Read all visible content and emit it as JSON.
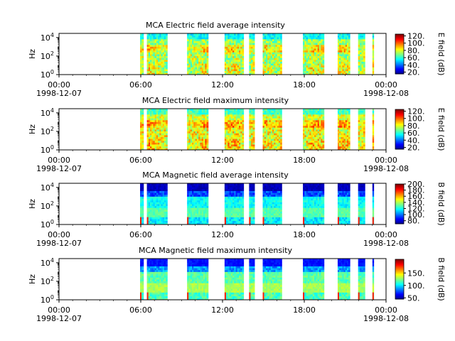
{
  "chart_data": [
    {
      "type": "heatmap",
      "title": "MCA  Electric field average intensity",
      "ylabel": "Hz",
      "yscale": "log",
      "yticks": [
        {
          "exp": "0"
        },
        {
          "exp": "2"
        },
        {
          "exp": "4"
        }
      ],
      "xticks": [
        {
          "time": "00:00",
          "date": "1998-12-07"
        },
        {
          "time": "06:00",
          "date": ""
        },
        {
          "time": "12:00",
          "date": ""
        },
        {
          "time": "18:00",
          "date": ""
        },
        {
          "time": "00:00",
          "date": "1998-12-08"
        }
      ],
      "colorbar": {
        "label": "E field (dB)",
        "range": [
          15,
          125
        ],
        "ticks": [
          "20.",
          "40.",
          "60.",
          "80.",
          "100.",
          "120."
        ],
        "tick_values": [
          20,
          40,
          60,
          80,
          100,
          120
        ]
      },
      "data_intervals_hours": [
        [
          5.95,
          6.2
        ],
        [
          6.45,
          7.95
        ],
        [
          9.4,
          10.95
        ],
        [
          12.15,
          13.55
        ],
        [
          13.95,
          14.35
        ],
        [
          14.95,
          16.35
        ],
        [
          17.9,
          19.45
        ],
        [
          20.45,
          21.35
        ],
        [
          21.95,
          22.45
        ],
        [
          23.0,
          23.1
        ]
      ],
      "profile": "e_avg"
    },
    {
      "type": "heatmap",
      "title": "MCA  Electric field maximum intensity",
      "ylabel": "Hz",
      "yscale": "log",
      "yticks": [
        {
          "exp": "0"
        },
        {
          "exp": "2"
        },
        {
          "exp": "4"
        }
      ],
      "xticks": [
        {
          "time": "00:00",
          "date": "1998-12-07"
        },
        {
          "time": "06:00",
          "date": ""
        },
        {
          "time": "12:00",
          "date": ""
        },
        {
          "time": "18:00",
          "date": ""
        },
        {
          "time": "00:00",
          "date": "1998-12-08"
        }
      ],
      "colorbar": {
        "label": "E field (dB)",
        "range": [
          15,
          125
        ],
        "ticks": [
          "20.",
          "40.",
          "60.",
          "80.",
          "100.",
          "120."
        ],
        "tick_values": [
          20,
          40,
          60,
          80,
          100,
          120
        ]
      },
      "data_intervals_hours": [
        [
          5.95,
          6.2
        ],
        [
          6.45,
          7.95
        ],
        [
          9.4,
          10.95
        ],
        [
          12.15,
          13.55
        ],
        [
          13.95,
          14.35
        ],
        [
          14.95,
          16.35
        ],
        [
          17.9,
          19.45
        ],
        [
          20.45,
          21.35
        ],
        [
          21.95,
          22.45
        ],
        [
          23.0,
          23.1
        ]
      ],
      "profile": "e_max"
    },
    {
      "type": "heatmap",
      "title": "MCA  Magnetic field average intensity",
      "ylabel": "Hz",
      "yscale": "log",
      "yticks": [
        {
          "exp": "0"
        },
        {
          "exp": "2"
        },
        {
          "exp": "4"
        }
      ],
      "xticks": [
        {
          "time": "00:00",
          "date": "1998-12-07"
        },
        {
          "time": "06:00",
          "date": ""
        },
        {
          "time": "12:00",
          "date": ""
        },
        {
          "time": "18:00",
          "date": ""
        },
        {
          "time": "00:00",
          "date": "1998-12-08"
        }
      ],
      "colorbar": {
        "label": "B field (dB)",
        "range": [
          70,
          200
        ],
        "ticks": [
          "80.",
          "100.",
          "120.",
          "140.",
          "160.",
          "180.",
          "200."
        ],
        "tick_values": [
          80,
          100,
          120,
          140,
          160,
          180,
          200
        ]
      },
      "data_intervals_hours": [
        [
          5.95,
          6.2
        ],
        [
          6.45,
          7.95
        ],
        [
          9.4,
          10.95
        ],
        [
          12.15,
          13.55
        ],
        [
          13.95,
          14.35
        ],
        [
          14.95,
          16.35
        ],
        [
          17.9,
          19.45
        ],
        [
          20.45,
          21.35
        ],
        [
          21.95,
          22.45
        ],
        [
          23.0,
          23.1
        ]
      ],
      "profile": "b_avg"
    },
    {
      "type": "heatmap",
      "title": "MCA  Magnetic field maximum intensity",
      "ylabel": "Hz",
      "yscale": "log",
      "yticks": [
        {
          "exp": "0"
        },
        {
          "exp": "2"
        },
        {
          "exp": "4"
        }
      ],
      "xticks": [
        {
          "time": "00:00",
          "date": "1998-12-07"
        },
        {
          "time": "06:00",
          "date": ""
        },
        {
          "time": "12:00",
          "date": ""
        },
        {
          "time": "18:00",
          "date": ""
        },
        {
          "time": "00:00",
          "date": "1998-12-08"
        }
      ],
      "colorbar": {
        "label": "B field (dB)",
        "range": [
          45,
          205
        ],
        "ticks": [
          "50.",
          "100.",
          "150."
        ],
        "tick_values": [
          50,
          100,
          150
        ]
      },
      "data_intervals_hours": [
        [
          5.95,
          6.2
        ],
        [
          6.45,
          7.95
        ],
        [
          9.4,
          10.95
        ],
        [
          12.15,
          13.55
        ],
        [
          13.95,
          14.35
        ],
        [
          14.95,
          16.35
        ],
        [
          17.9,
          19.45
        ],
        [
          20.45,
          21.35
        ],
        [
          21.95,
          22.45
        ],
        [
          23.0,
          23.1
        ]
      ],
      "profile": "b_max"
    }
  ]
}
